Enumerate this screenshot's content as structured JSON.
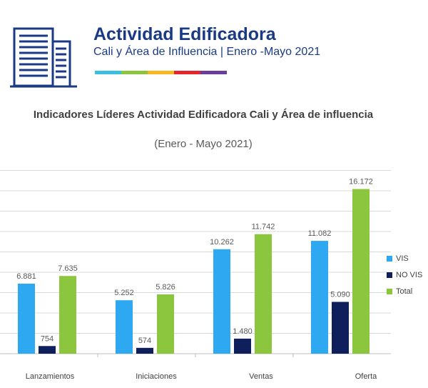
{
  "header": {
    "title": "Actividad Edificadora",
    "subtitle": "Cali y Área de Influencia | Enero -Mayo 2021",
    "icon": "building-icon",
    "stripe_colors": [
      "#3bbfe0",
      "#8cc63f",
      "#f5b91e",
      "#e3262d",
      "#6a3d9a"
    ]
  },
  "chart_data": {
    "type": "bar",
    "title": "Indicadores Líderes Actividad Edificadora Cali y Área de influencia",
    "subtitle": "(Enero - Mayo 2021)",
    "categories": [
      "Lanzamientos",
      "Iniciaciones",
      "Ventas",
      "Oferta"
    ],
    "series": [
      {
        "name": "VIS",
        "color": "#2fa8f2",
        "values": [
          6881,
          5252,
          10262,
          11082
        ],
        "labels": [
          "6.881",
          "5.252",
          "10.262",
          "11.082"
        ]
      },
      {
        "name": "NO VIS",
        "color": "#0f1f5c",
        "values": [
          754,
          574,
          1480,
          5090
        ],
        "labels": [
          "754",
          "574",
          "1.480",
          "5.090"
        ]
      },
      {
        "name": "Total",
        "color": "#8cc63f",
        "values": [
          7635,
          5826,
          11742,
          16172
        ],
        "labels": [
          "7.635",
          "5.826",
          "11.742",
          "16.172"
        ]
      }
    ],
    "ylim": [
      0,
      18000
    ],
    "grid": true,
    "legend_position": "right"
  }
}
